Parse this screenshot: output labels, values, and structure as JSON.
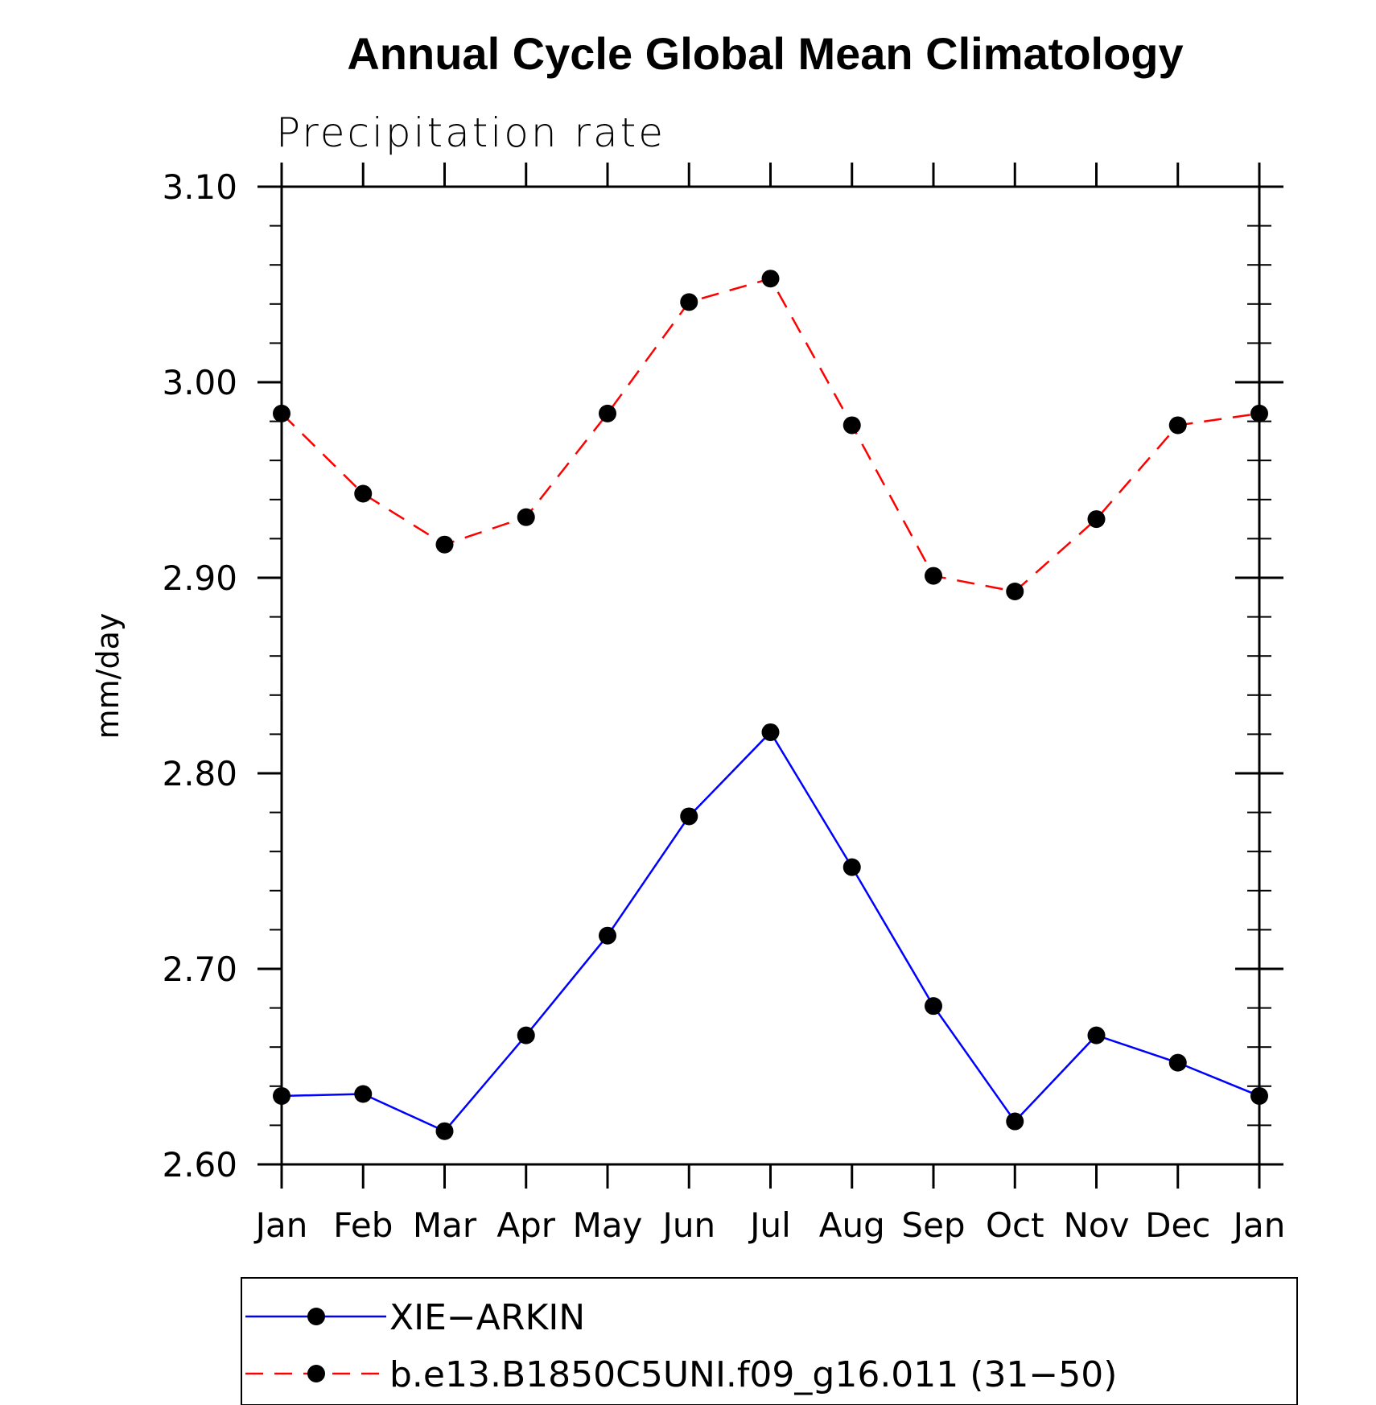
{
  "chart_data": {
    "type": "line",
    "title": "Annual Cycle Global Mean Climatology",
    "subtitle": "Precipitation rate",
    "ylabel": "mm/day",
    "xlabel": "",
    "categories": [
      "Jan",
      "Feb",
      "Mar",
      "Apr",
      "May",
      "Jun",
      "Jul",
      "Aug",
      "Sep",
      "Oct",
      "Nov",
      "Dec",
      "Jan"
    ],
    "ylim": [
      2.6,
      3.1
    ],
    "yticks": [
      "2.60",
      "2.70",
      "2.80",
      "2.90",
      "3.00",
      "3.10"
    ],
    "legend_position": "bottom",
    "series": [
      {
        "name": "XIE−ARKIN",
        "color": "#0000ff",
        "line_style": "solid",
        "marker": "filled-circle",
        "values": [
          2.635,
          2.636,
          2.617,
          2.666,
          2.717,
          2.778,
          2.821,
          2.752,
          2.681,
          2.622,
          2.666,
          2.652,
          2.635
        ]
      },
      {
        "name": "b.e13.B1850C5UNI.f09_g16.011 (31−50)",
        "color": "#ff0000",
        "line_style": "dashed",
        "marker": "filled-circle",
        "values": [
          2.984,
          2.943,
          2.917,
          2.931,
          2.984,
          3.041,
          3.053,
          2.978,
          2.901,
          2.893,
          2.93,
          2.978,
          2.984
        ]
      }
    ]
  }
}
